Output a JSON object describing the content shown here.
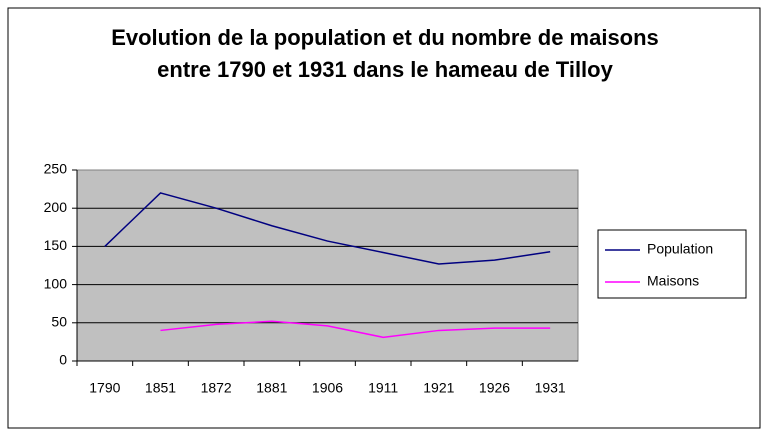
{
  "chart_data": {
    "type": "line",
    "title": "Evolution de la population et du nombre de maisons entre 1790 et 1931 dans le hameau de Tilloy",
    "categories": [
      "1790",
      "1851",
      "1872",
      "1881",
      "1906",
      "1911",
      "1921",
      "1926",
      "1931"
    ],
    "series": [
      {
        "name": "Population",
        "color": "#000080",
        "values": [
          150,
          220,
          200,
          177,
          157,
          142,
          127,
          132,
          143
        ]
      },
      {
        "name": "Maisons",
        "color": "#ff00ff",
        "values": [
          null,
          40,
          48,
          52,
          46,
          31,
          40,
          43,
          43
        ]
      }
    ],
    "ylim": [
      0,
      250
    ],
    "yticks": [
      0,
      50,
      100,
      150,
      200,
      250
    ],
    "grid": true,
    "legend": "right"
  }
}
